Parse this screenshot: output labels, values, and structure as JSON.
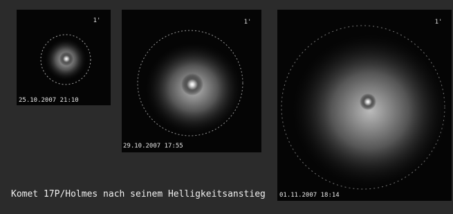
{
  "caption": "Komet 17P/Holmes nach seinem Helligkeitsanstieg",
  "panels": [
    {
      "timestamp": "25.10.2007 21:10",
      "scale": "1'"
    },
    {
      "timestamp": "29.10.2007 17:55",
      "scale": "1'"
    },
    {
      "timestamp": "01.11.2007 18:14",
      "scale": "1'"
    }
  ]
}
